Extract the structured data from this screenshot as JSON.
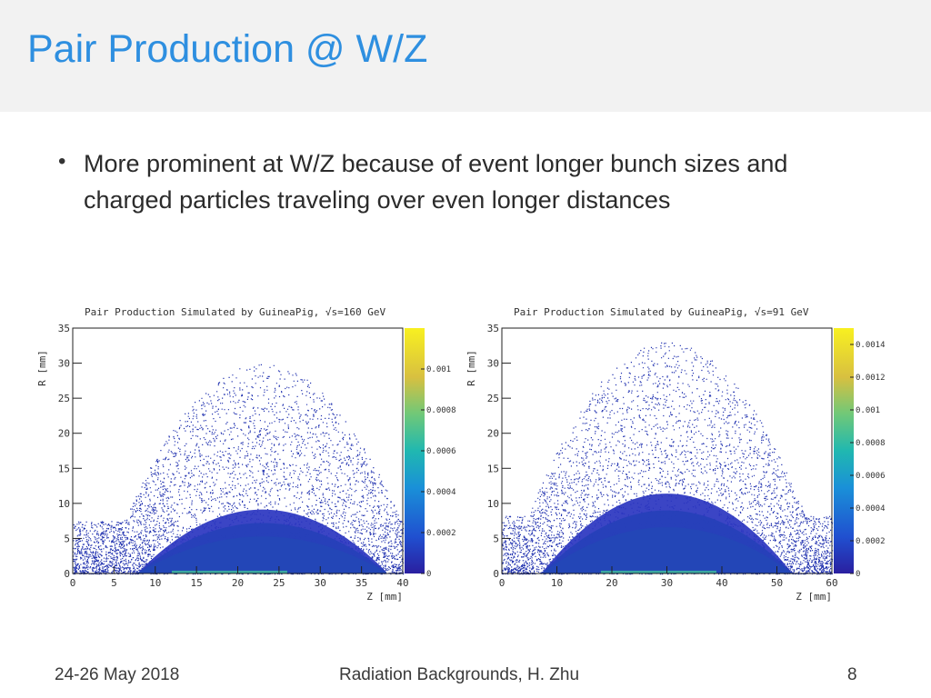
{
  "slide": {
    "title": "Pair Production @ W/Z",
    "bullet": "More prominent at W/Z because of event longer bunch sizes and charged particles traveling over even longer distances",
    "bullet_symbol": "•"
  },
  "footer": {
    "date": "24-26 May 2018",
    "center": "Radiation Backgrounds, H. Zhu",
    "page": "8"
  },
  "chart_data": [
    {
      "type": "heatmap",
      "title": "Pair Production Simulated by GuineaPig, √s=160 GeV",
      "xlabel": "Z  [mm]",
      "ylabel": "R  [mm]",
      "xlim": [
        0,
        40
      ],
      "ylim": [
        0,
        35
      ],
      "xticks": [
        "0",
        "5",
        "10",
        "15",
        "20",
        "25",
        "30",
        "35",
        "40"
      ],
      "yticks": [
        "0",
        "5",
        "10",
        "15",
        "20",
        "25",
        "30",
        "35"
      ],
      "colorbar": {
        "range": [
          0,
          0.0012
        ],
        "tick_values": [
          0,
          0.0002,
          0.0004,
          0.0006,
          0.0008,
          0.001
        ],
        "tick_labels": [
          "0",
          "0.0002",
          "0.0004",
          "0.0006",
          "0.0008",
          "0.001"
        ]
      },
      "distribution": {
        "peak_z": 23,
        "core_radius_mm": 4,
        "extent_z": [
          0,
          40
        ],
        "extent_r": [
          0,
          30
        ]
      }
    },
    {
      "type": "heatmap",
      "title": "Pair Production Simulated by GuineaPig, √s=91 GeV",
      "xlabel": "Z  [mm]",
      "ylabel": "R  [mm]",
      "xlim": [
        0,
        60
      ],
      "ylim": [
        0,
        35
      ],
      "xticks": [
        "0",
        "10",
        "20",
        "30",
        "40",
        "50",
        "60"
      ],
      "yticks": [
        "0",
        "5",
        "10",
        "15",
        "20",
        "25",
        "30",
        "35"
      ],
      "colorbar": {
        "range": [
          0,
          0.0015
        ],
        "tick_values": [
          0,
          0.0002,
          0.0004,
          0.0006,
          0.0008,
          0.001,
          0.0012,
          0.0014
        ],
        "tick_labels": [
          "0",
          "0.0002",
          "0.0004",
          "0.0006",
          "0.0008",
          "0.001",
          "0.0012",
          "0.0014"
        ]
      },
      "distribution": {
        "peak_z": 30,
        "core_radius_mm": 5,
        "extent_z": [
          0,
          60
        ],
        "extent_r": [
          0,
          33
        ]
      }
    }
  ]
}
